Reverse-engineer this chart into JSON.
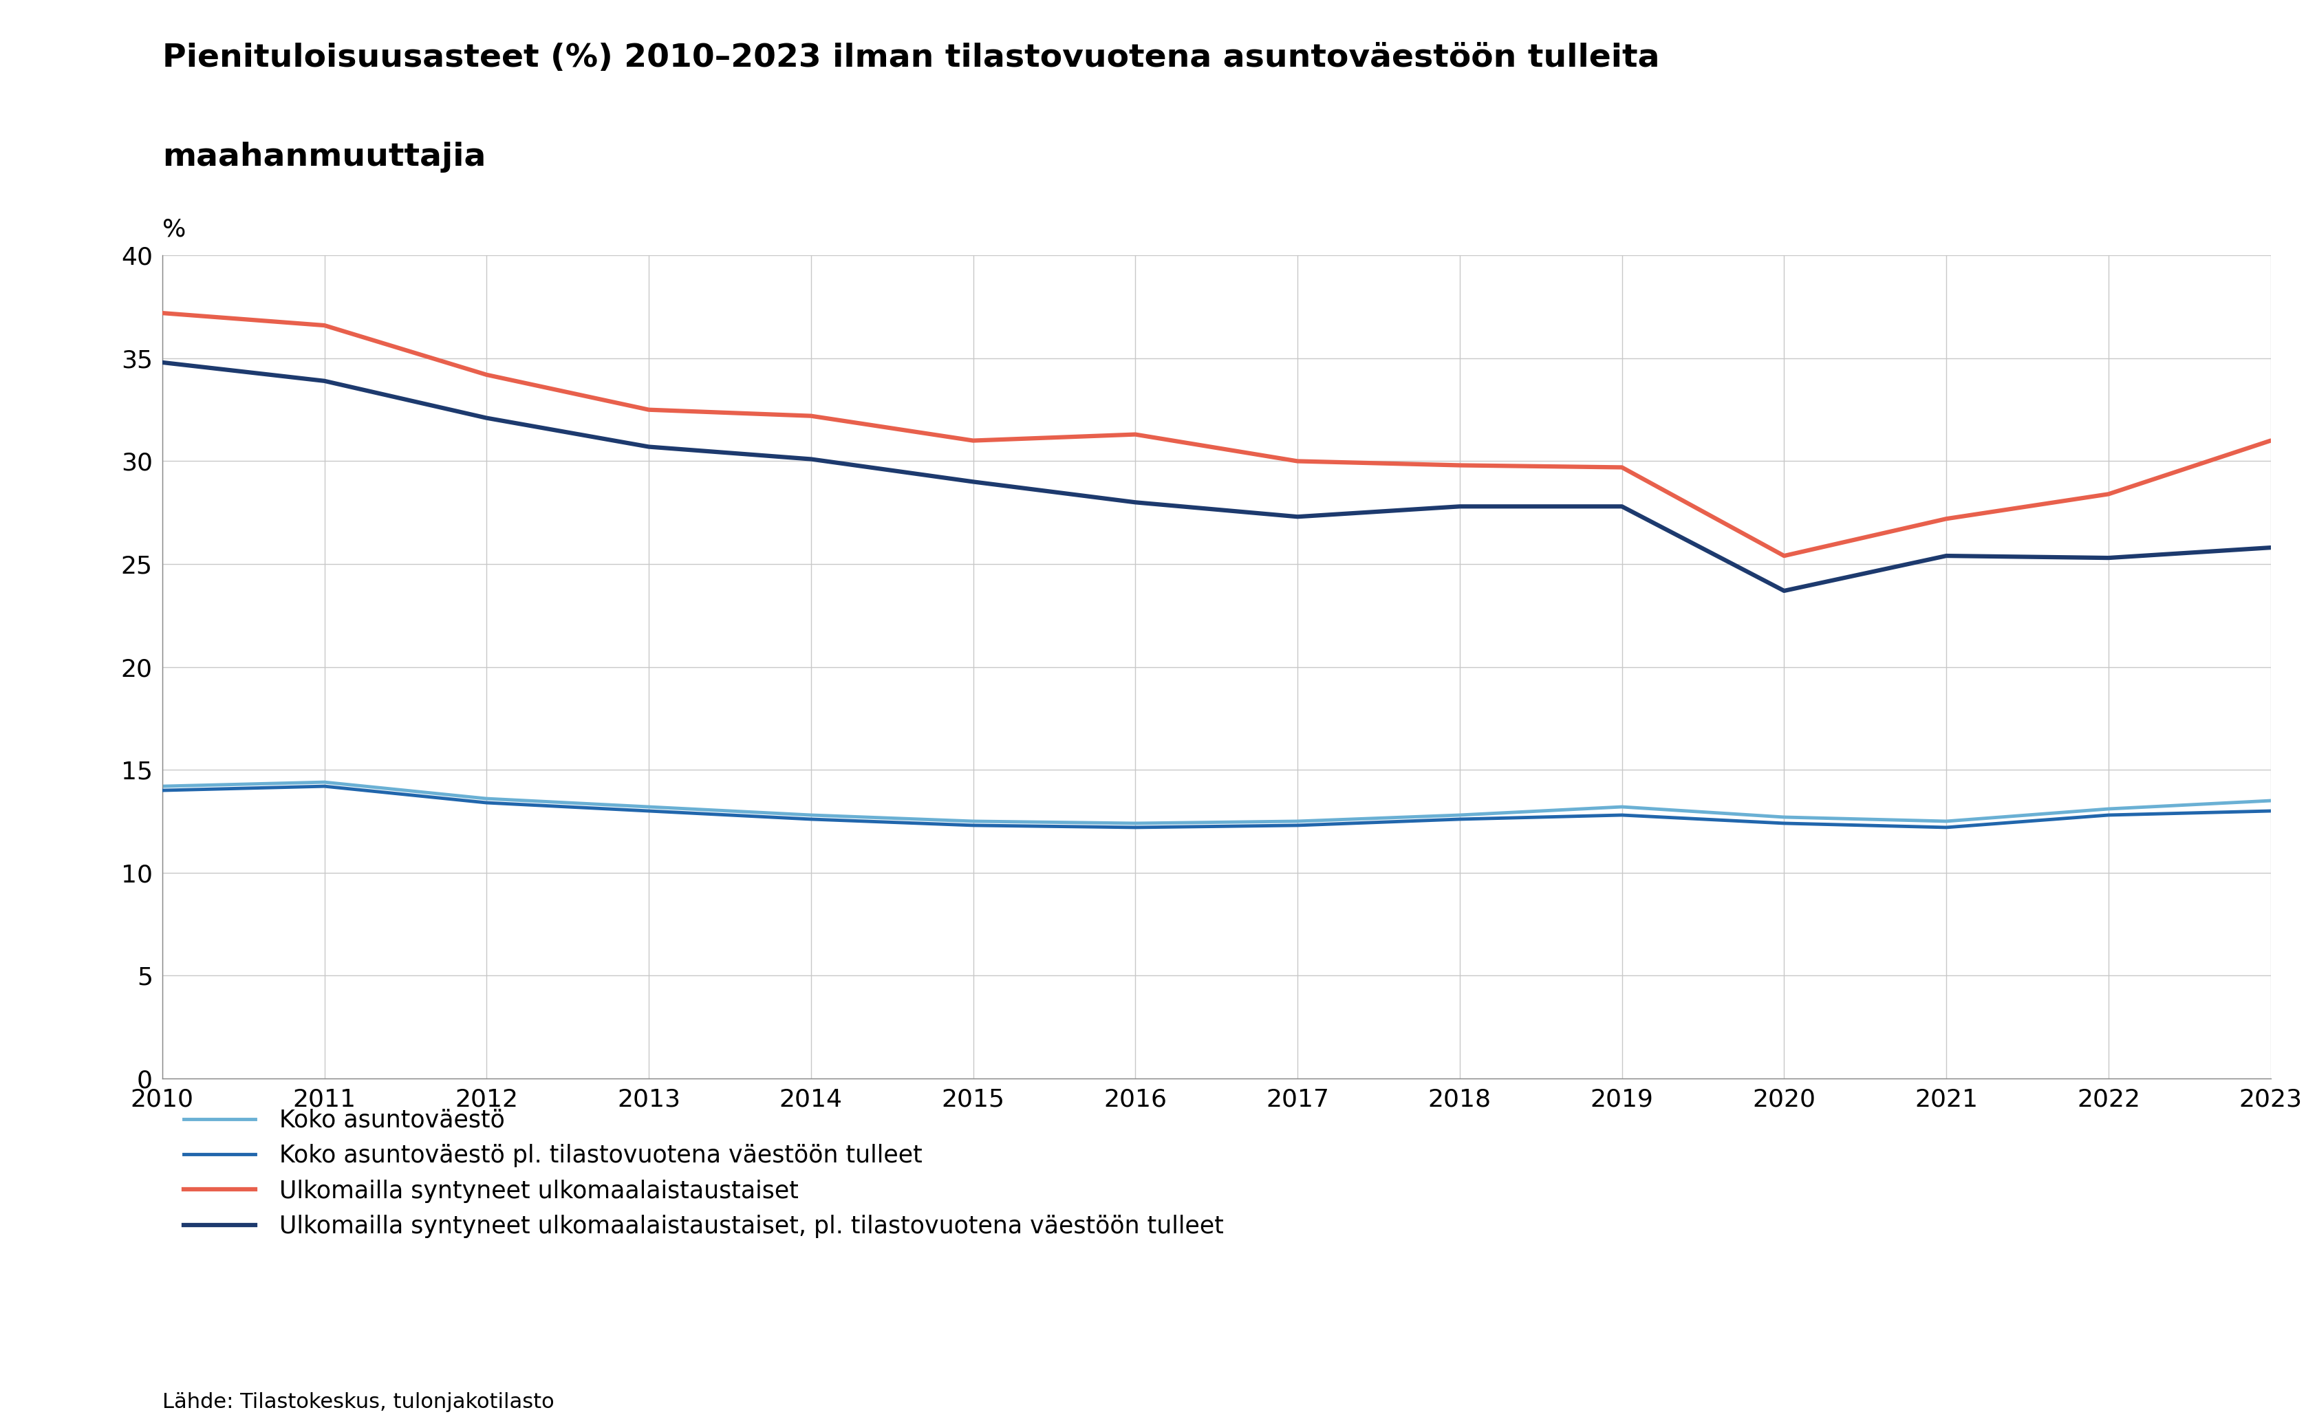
{
  "title_line1": "Pienituloisuusasteet (%) 2010–2023 ilman tilastovuotena asuntoväestöön tulleita",
  "title_line2": "maahanmuuttajia",
  "ylabel": "%",
  "source": "Lähde: Tilastokeskus, tulonjakotilasto",
  "years": [
    2010,
    2011,
    2012,
    2013,
    2014,
    2015,
    2016,
    2017,
    2018,
    2019,
    2020,
    2021,
    2022,
    2023
  ],
  "series": {
    "koko_asuntovaesto": {
      "label": "Koko asuntoväestö",
      "color": "#6ab0d4",
      "linewidth": 3.5,
      "zorder": 2,
      "values": [
        14.2,
        14.4,
        13.6,
        13.2,
        12.8,
        12.5,
        12.4,
        12.5,
        12.8,
        13.2,
        12.7,
        12.5,
        13.1,
        13.5
      ]
    },
    "koko_asuntovaesto_pl": {
      "label": "Koko asuntoväestö pl. tilastovuotena väestöön tulleet",
      "color": "#2166ac",
      "linewidth": 3.5,
      "zorder": 3,
      "values": [
        14.0,
        14.2,
        13.4,
        13.0,
        12.6,
        12.3,
        12.2,
        12.3,
        12.6,
        12.8,
        12.4,
        12.2,
        12.8,
        13.0
      ]
    },
    "ulkomailla_syntyneet": {
      "label": "Ulkomailla syntyneet ulkomaalaistaustaiset",
      "color": "#e8604c",
      "linewidth": 4.5,
      "zorder": 4,
      "values": [
        37.2,
        36.6,
        34.2,
        32.5,
        32.2,
        31.0,
        31.3,
        30.0,
        29.8,
        29.7,
        25.4,
        27.2,
        28.4,
        31.0
      ]
    },
    "ulkomailla_syntyneet_pl": {
      "label": "Ulkomailla syntyneet ulkomaalaistaustaiset, pl. tilastovuotena väestöön tulleet",
      "color": "#1d3a6e",
      "linewidth": 4.5,
      "zorder": 5,
      "values": [
        34.8,
        33.9,
        32.1,
        30.7,
        30.1,
        29.0,
        28.0,
        27.3,
        27.8,
        27.8,
        23.7,
        25.4,
        25.3,
        25.8
      ]
    }
  },
  "ylim": [
    0,
    40
  ],
  "yticks": [
    0,
    5,
    10,
    15,
    20,
    25,
    30,
    35,
    40
  ],
  "background_color": "#ffffff",
  "grid_color": "#c8c8c8",
  "title_fontsize": 34,
  "ylabel_fontsize": 26,
  "tick_fontsize": 26,
  "legend_fontsize": 25,
  "source_fontsize": 22
}
